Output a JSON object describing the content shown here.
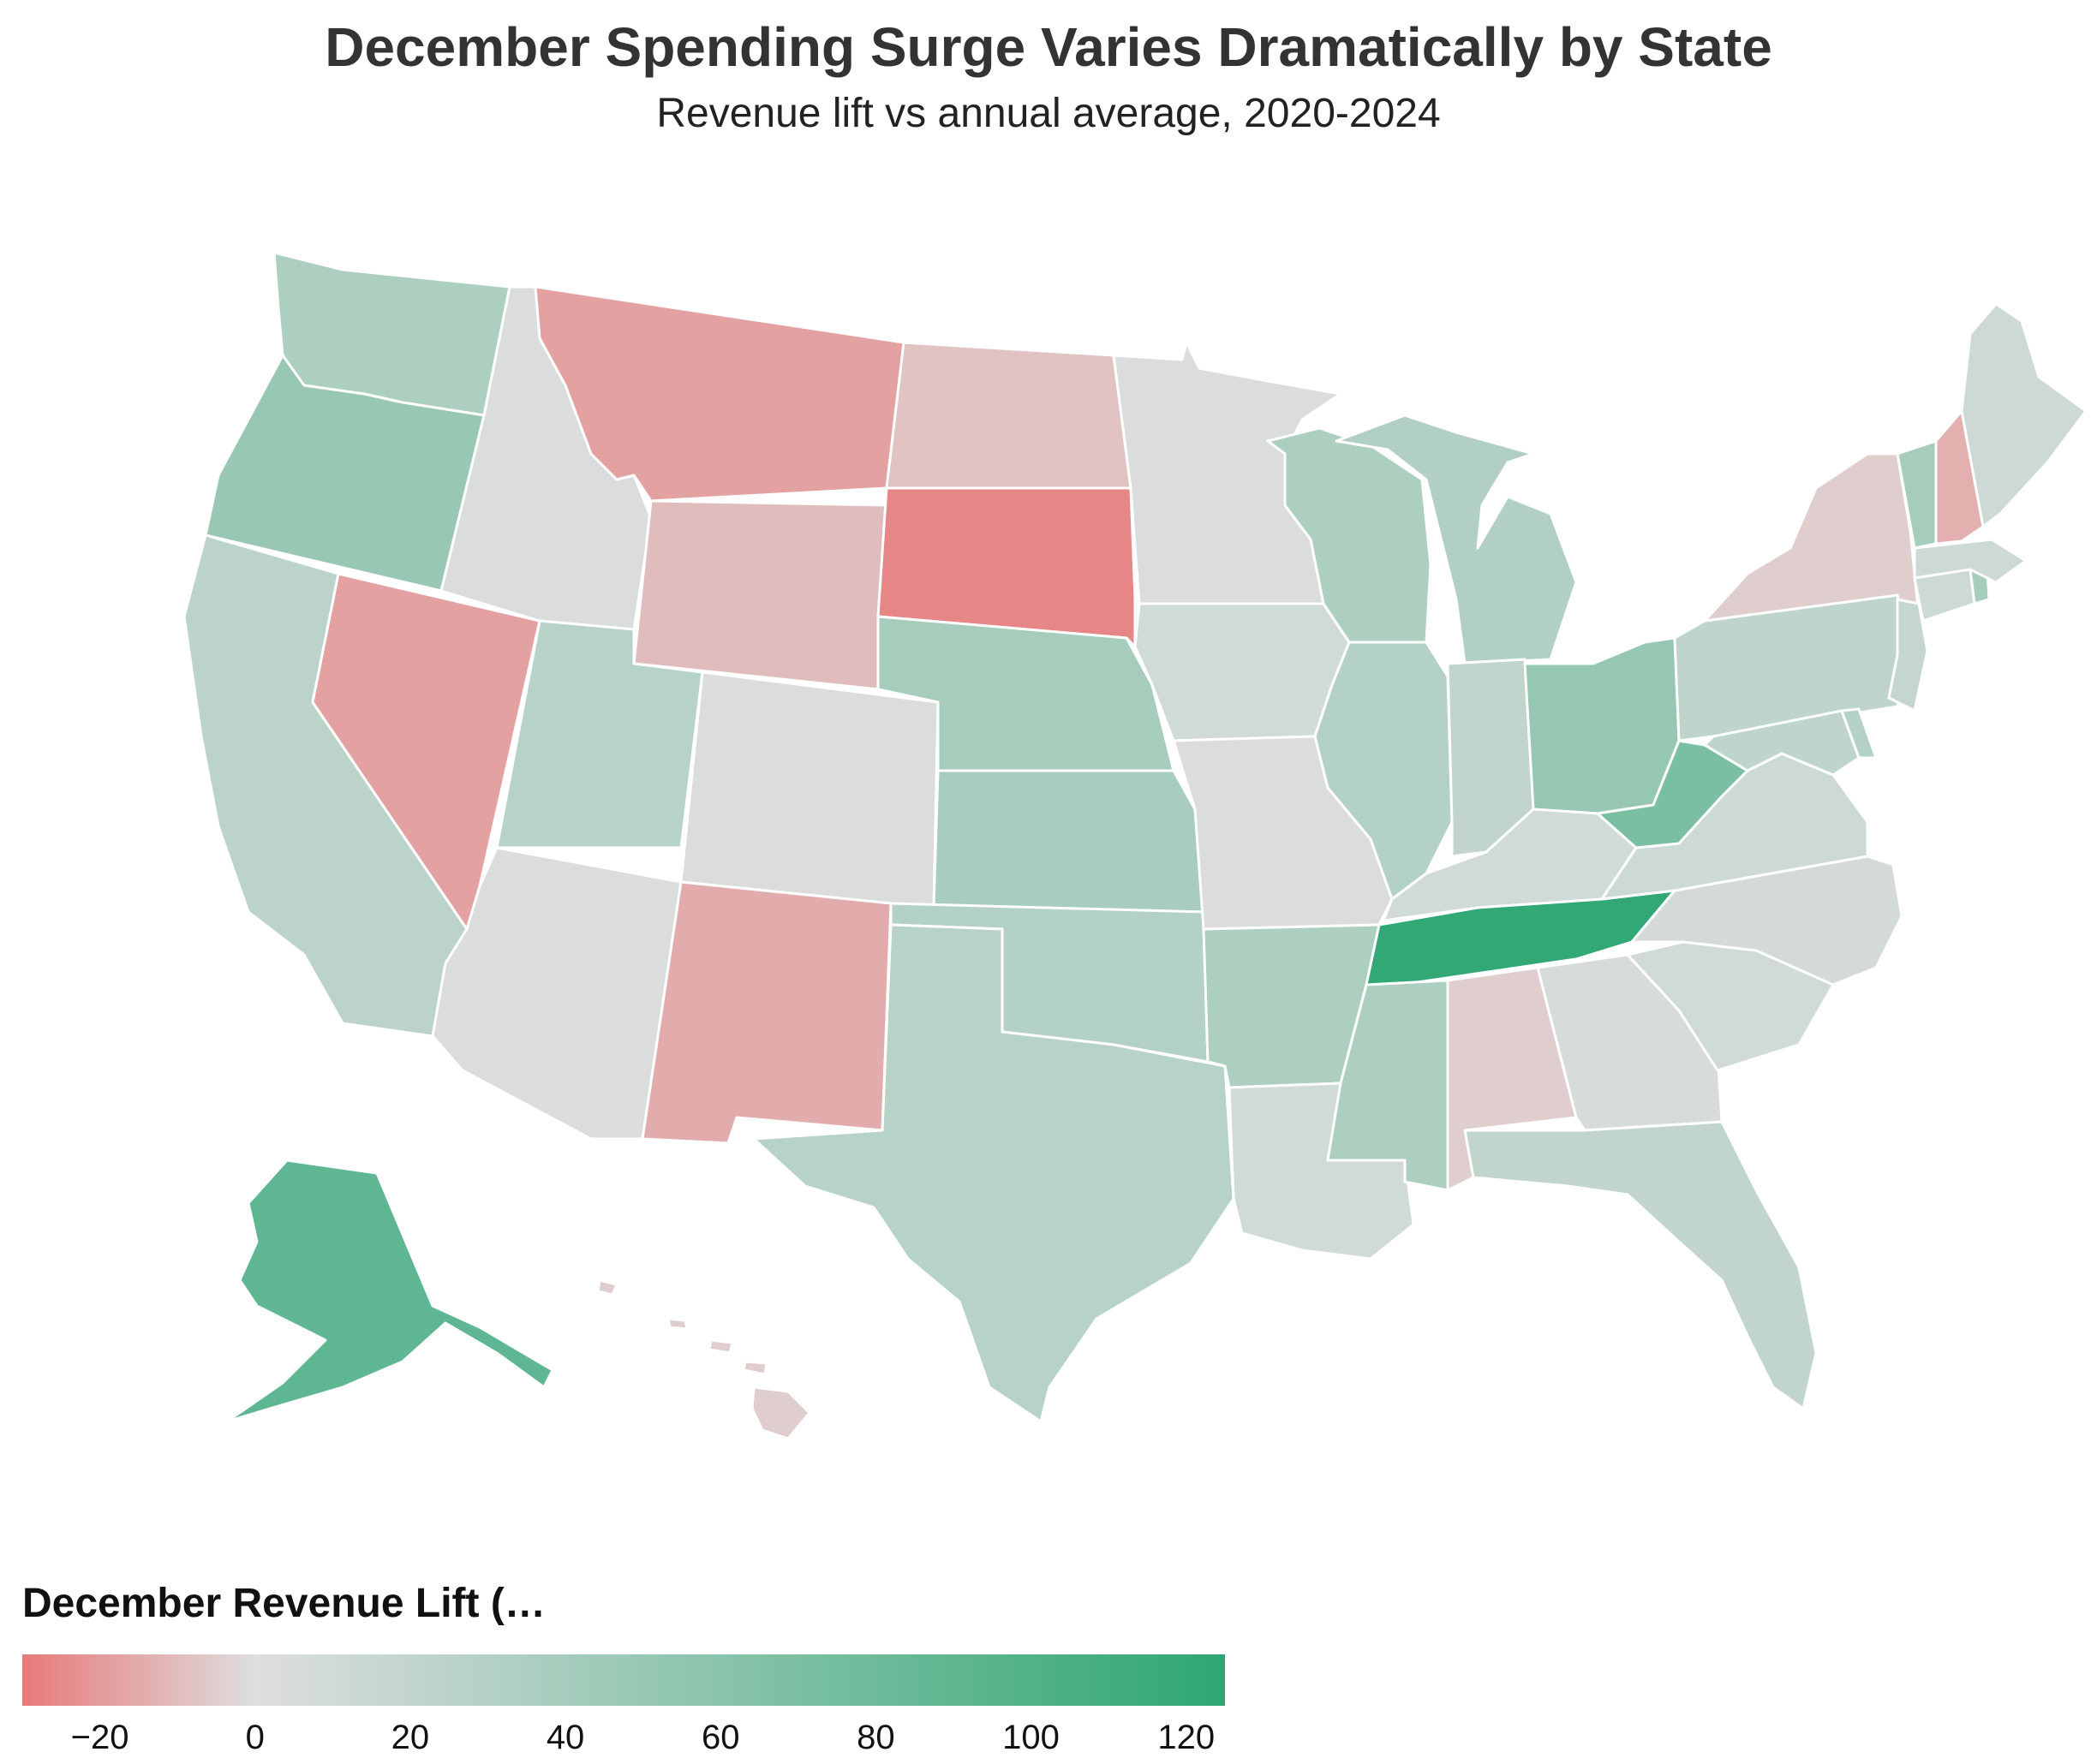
{
  "title": "December Spending Surge Varies Dramatically by State",
  "subtitle": "Revenue lift vs annual average, 2020-2024",
  "chart_data": {
    "type": "choropleth",
    "metric": "December Revenue Lift (…",
    "color_scale": {
      "domain": [
        -30,
        0,
        125
      ],
      "colors": [
        "#e87979",
        "#dedede",
        "#2ea774"
      ],
      "ticks": [
        -20,
        0,
        20,
        40,
        60,
        80,
        100,
        120
      ],
      "tick_labels": [
        "−20",
        "0",
        "20",
        "40",
        "60",
        "80",
        "100",
        "120"
      ]
    },
    "states": [
      {
        "code": "WA",
        "value": 35
      },
      {
        "code": "OR",
        "value": 50
      },
      {
        "code": "CA",
        "value": 25
      },
      {
        "code": "NV",
        "value": -18
      },
      {
        "code": "ID",
        "value": 2
      },
      {
        "code": "MT",
        "value": -18
      },
      {
        "code": "WY",
        "value": -10
      },
      {
        "code": "UT",
        "value": 28
      },
      {
        "code": "AZ",
        "value": 2
      },
      {
        "code": "CO",
        "value": 2
      },
      {
        "code": "NM",
        "value": -15
      },
      {
        "code": "ND",
        "value": -8
      },
      {
        "code": "SD",
        "value": -26
      },
      {
        "code": "NE",
        "value": 40
      },
      {
        "code": "KS",
        "value": 38
      },
      {
        "code": "OK",
        "value": 30
      },
      {
        "code": "TX",
        "value": 28
      },
      {
        "code": "MN",
        "value": 3
      },
      {
        "code": "IA",
        "value": 10
      },
      {
        "code": "MO",
        "value": 3
      },
      {
        "code": "AR",
        "value": 35
      },
      {
        "code": "LA",
        "value": 10
      },
      {
        "code": "WI",
        "value": 35
      },
      {
        "code": "IL",
        "value": 30
      },
      {
        "code": "MI",
        "value": 32
      },
      {
        "code": "IN",
        "value": 20
      },
      {
        "code": "OH",
        "value": 52
      },
      {
        "code": "KY",
        "value": 10
      },
      {
        "code": "TN",
        "value": 122
      },
      {
        "code": "MS",
        "value": 35
      },
      {
        "code": "AL",
        "value": -5
      },
      {
        "code": "GA",
        "value": 5
      },
      {
        "code": "FL",
        "value": 20
      },
      {
        "code": "SC",
        "value": 10
      },
      {
        "code": "NC",
        "value": 8
      },
      {
        "code": "VA",
        "value": 12
      },
      {
        "code": "WV",
        "value": 70
      },
      {
        "code": "PA",
        "value": 22
      },
      {
        "code": "NY",
        "value": -5
      },
      {
        "code": "MD",
        "value": 22
      },
      {
        "code": "DE",
        "value": 30
      },
      {
        "code": "NJ",
        "value": 18
      },
      {
        "code": "CT",
        "value": 12
      },
      {
        "code": "RI",
        "value": 40
      },
      {
        "code": "MA",
        "value": 12
      },
      {
        "code": "VT",
        "value": 40
      },
      {
        "code": "NH",
        "value": -14
      },
      {
        "code": "ME",
        "value": 12
      },
      {
        "code": "AK",
        "value": 90
      },
      {
        "code": "HI",
        "value": -5
      }
    ]
  }
}
